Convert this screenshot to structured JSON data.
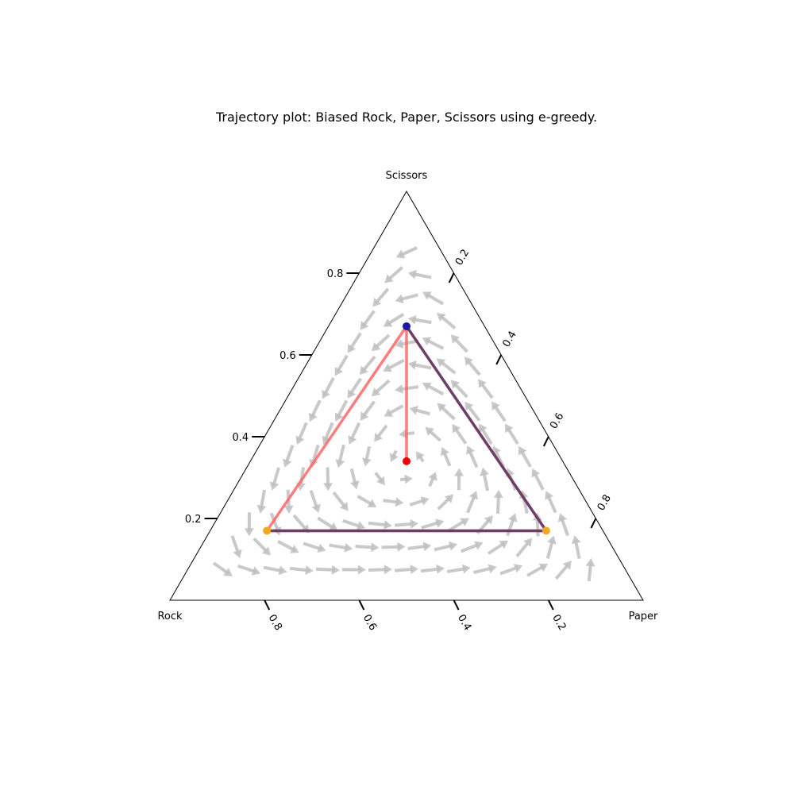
{
  "chart_data": {
    "type": "ternary",
    "title": "Trajectory plot: Biased Rock, Paper, Scissors using e-greedy.",
    "vertices": {
      "top": "Scissors",
      "bottom_left": "Rock",
      "bottom_right": "Paper"
    },
    "ticks": {
      "left_axis": [
        "0.2",
        "0.4",
        "0.6",
        "0.8"
      ],
      "right_axis": [
        "0.2",
        "0.4",
        "0.6",
        "0.8"
      ],
      "bottom_axis": [
        "0.8",
        "0.6",
        "0.4",
        "0.2"
      ]
    },
    "vector_field": {
      "shown": true,
      "color": "#c0c0c0"
    },
    "trajectories": [
      {
        "color": "#ff6666",
        "points": [
          {
            "rock": 0.33,
            "paper": 0.33,
            "scissors": 0.34
          },
          {
            "rock": 0.165,
            "paper": 0.165,
            "scissors": 0.67
          },
          {
            "rock": 0.71,
            "paper": 0.12,
            "scissors": 0.17
          },
          {
            "rock": 0.12,
            "paper": 0.71,
            "scissors": 0.17
          },
          {
            "rock": 0.165,
            "paper": 0.165,
            "scissors": 0.67
          }
        ]
      },
      {
        "color": "#553366",
        "points": [
          {
            "rock": 0.165,
            "paper": 0.165,
            "scissors": 0.67
          },
          {
            "rock": 0.12,
            "paper": 0.71,
            "scissors": 0.17
          },
          {
            "rock": 0.71,
            "paper": 0.12,
            "scissors": 0.17
          }
        ]
      }
    ],
    "markers": [
      {
        "rock": 0.33,
        "paper": 0.33,
        "scissors": 0.34,
        "color": "#ee0000"
      },
      {
        "rock": 0.165,
        "paper": 0.165,
        "scissors": 0.67,
        "color": "#1a1aaa"
      },
      {
        "rock": 0.71,
        "paper": 0.12,
        "scissors": 0.17,
        "color": "#f5a623"
      },
      {
        "rock": 0.12,
        "paper": 0.71,
        "scissors": 0.17,
        "color": "#f5a623"
      }
    ]
  }
}
